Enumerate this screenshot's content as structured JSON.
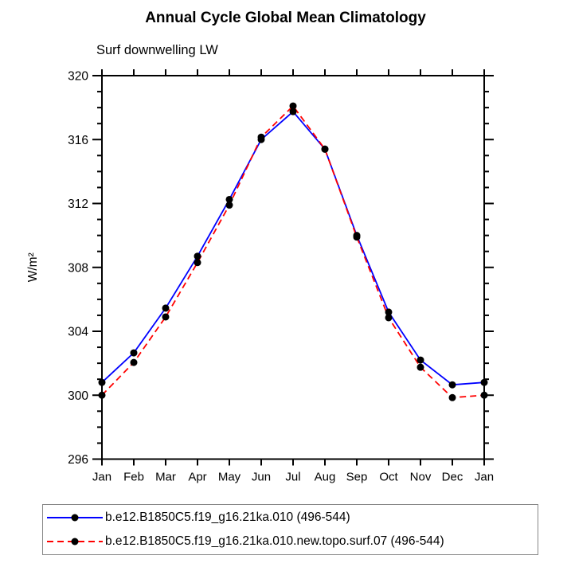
{
  "chart_data": {
    "type": "line",
    "title": "Annual Cycle Global Mean Climatology",
    "subtitle": "Surf downwelling LW",
    "ylabel": "W/m²",
    "x_categories": [
      "Jan",
      "Feb",
      "Mar",
      "Apr",
      "May",
      "Jun",
      "Jul",
      "Aug",
      "Sep",
      "Oct",
      "Nov",
      "Dec",
      "Jan"
    ],
    "ylim": [
      296,
      320
    ],
    "ytick_major": [
      296,
      300,
      304,
      308,
      312,
      316,
      320
    ],
    "ytick_minor_step": 1,
    "grid": false,
    "legend_position": "bottom",
    "series": [
      {
        "name": "b.e12.B1850C5.f19_g16.21ka.010 (496-544)",
        "color": "#0000ff",
        "style": "solid",
        "marker": "circle",
        "marker_color": "#000000",
        "values": [
          300.8,
          302.65,
          305.45,
          308.7,
          312.25,
          316.0,
          317.75,
          315.4,
          310.0,
          305.2,
          302.2,
          300.65,
          300.8
        ]
      },
      {
        "name": "b.e12.B1850C5.f19_g16.21ka.010.new.topo.surf.07 (496-544)",
        "color": "#ff0000",
        "style": "dashed",
        "marker": "circle",
        "marker_color": "#000000",
        "values": [
          300.0,
          302.05,
          304.9,
          308.3,
          311.9,
          316.15,
          318.1,
          315.4,
          309.9,
          304.85,
          301.75,
          299.85,
          300.0
        ]
      }
    ]
  }
}
